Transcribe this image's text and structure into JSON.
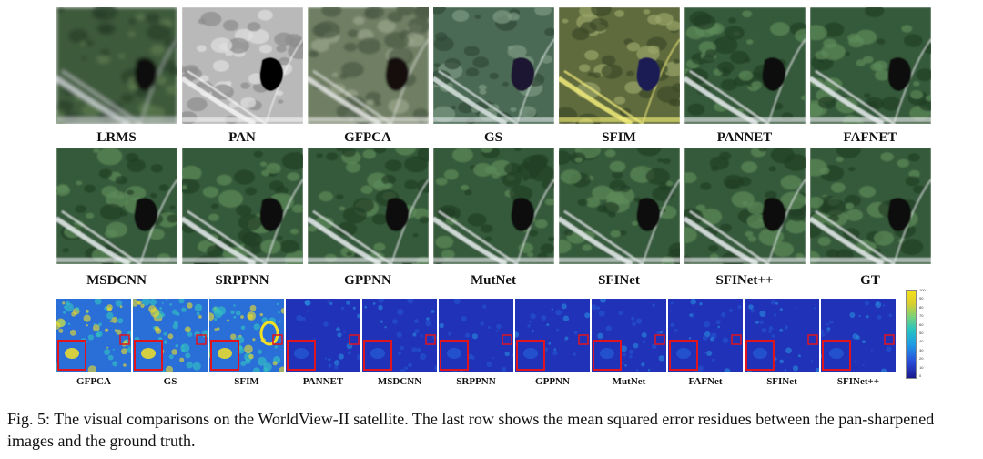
{
  "figure": {
    "row1_labels": [
      "LRMS",
      "PAN",
      "GFPCA",
      "GS",
      "SFIM",
      "PANNET",
      "FAFNET"
    ],
    "row2_labels": [
      "MSDCNN",
      "SRPPNN",
      "GPPNN",
      "MutNet",
      "SFINet",
      "SFINet++",
      "GT"
    ],
    "row3_labels": [
      "GFPCA",
      "GS",
      "SFIM",
      "PANNET",
      "MSDCNN",
      "SRPPNN",
      "GPPNN",
      "MutNet",
      "FAFNet",
      "SFINet",
      "SFINet++"
    ],
    "colorbar_ticks": [
      "100",
      "90",
      "80",
      "70",
      "60",
      "50",
      "40",
      "30",
      "20",
      "10",
      "0"
    ],
    "caption": "Fig. 5: The visual comparisons on the WorldView-II satellite. The last row shows the mean squared error residues between the pan-sharpened images and the ground truth."
  }
}
